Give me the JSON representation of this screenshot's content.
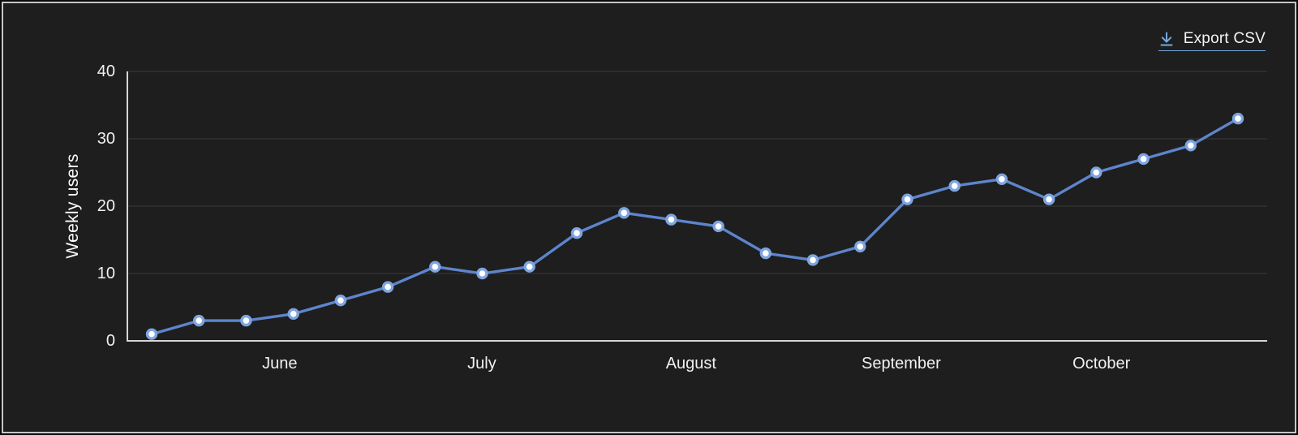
{
  "header": {
    "export_label": "Export CSV"
  },
  "colors": {
    "card_background": "#1e1e1e",
    "frame_border": "#c6c6c6",
    "grid_line": "#3b3b3b",
    "axis_line": "#d6d6d6",
    "series_line": "#5d85cd",
    "marker_stroke": "#7ea4e0",
    "marker_fill": "#ffffff",
    "tick_text": "#f0f0f0",
    "link_accent": "#76a9dd",
    "link_text": "#f5f5f5"
  },
  "icons": {
    "download": "download-icon"
  },
  "chart_data": {
    "type": "line",
    "ylabel": "Weekly users",
    "xlabel": "",
    "ylim": [
      0,
      40
    ],
    "y_ticks": [
      0,
      10,
      20,
      30,
      40
    ],
    "grid": "horizontal",
    "legend_position": "none",
    "x_unit": "week",
    "series": [
      {
        "name": "Weekly users",
        "values": [
          1,
          3,
          3,
          4,
          6,
          8,
          11,
          10,
          11,
          16,
          19,
          18,
          17,
          13,
          12,
          14,
          21,
          23,
          24,
          21,
          25,
          27,
          29,
          33
        ]
      }
    ],
    "x_month_labels": [
      {
        "label": "June",
        "pos": 2.71
      },
      {
        "label": "July",
        "pos": 6.99
      },
      {
        "label": "August",
        "pos": 11.42
      },
      {
        "label": "September",
        "pos": 15.87
      },
      {
        "label": "October",
        "pos": 20.11
      }
    ]
  }
}
